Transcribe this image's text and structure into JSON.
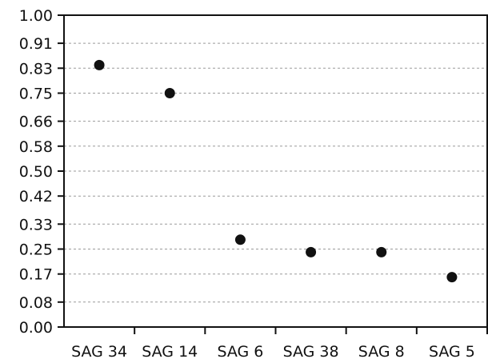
{
  "chart_data": {
    "type": "scatter",
    "title": "",
    "xlabel": "",
    "ylabel": "",
    "categories": [
      "SAG 34",
      "SAG 14",
      "SAG 6",
      "SAG 38",
      "SAG 8",
      "SAG 5"
    ],
    "values": [
      0.84,
      0.75,
      0.28,
      0.24,
      0.24,
      0.16
    ],
    "ylim": [
      0.0,
      1.0
    ],
    "yticks": [
      "1.00",
      "0.91",
      "0.83",
      "0.75",
      "0.66",
      "0.58",
      "0.50",
      "0.42",
      "0.33",
      "0.25",
      "0.17",
      "0.08",
      "0.00"
    ],
    "grid": true,
    "legend": "none",
    "colors": {
      "marker": "#111111",
      "axis": "#111111",
      "grid": "#9a9a9a"
    }
  }
}
